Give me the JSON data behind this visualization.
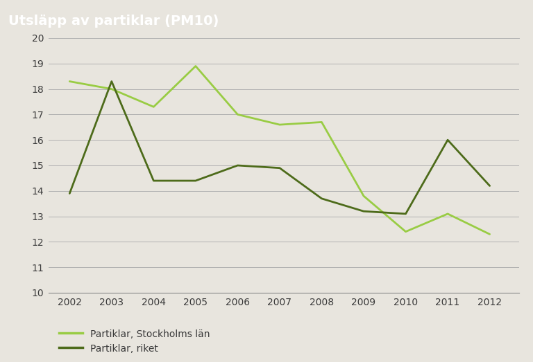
{
  "title": "Utsläpp av partiklar (PM10)",
  "title_bg_color": "#9a9390",
  "bg_color": "#e8e5de",
  "plot_bg_color": "#e8e5de",
  "years": [
    2002,
    2003,
    2004,
    2005,
    2006,
    2007,
    2008,
    2009,
    2010,
    2011,
    2012
  ],
  "stockholm_values": [
    18.3,
    18.0,
    17.3,
    18.9,
    17.0,
    16.6,
    16.7,
    13.8,
    12.4,
    13.1,
    12.3
  ],
  "riket_values": [
    13.9,
    18.3,
    14.4,
    14.4,
    15.0,
    14.9,
    13.7,
    13.2,
    13.1,
    16.0,
    14.2
  ],
  "stockholm_color": "#99cc44",
  "riket_color": "#4d6b1a",
  "ylim": [
    10,
    20
  ],
  "yticks": [
    10,
    11,
    12,
    13,
    14,
    15,
    16,
    17,
    18,
    19,
    20
  ],
  "legend_labels": [
    "Partiklar, Stockholms län",
    "Partiklar, riket"
  ],
  "line_width": 2.0,
  "title_fontsize": 14,
  "tick_fontsize": 10
}
